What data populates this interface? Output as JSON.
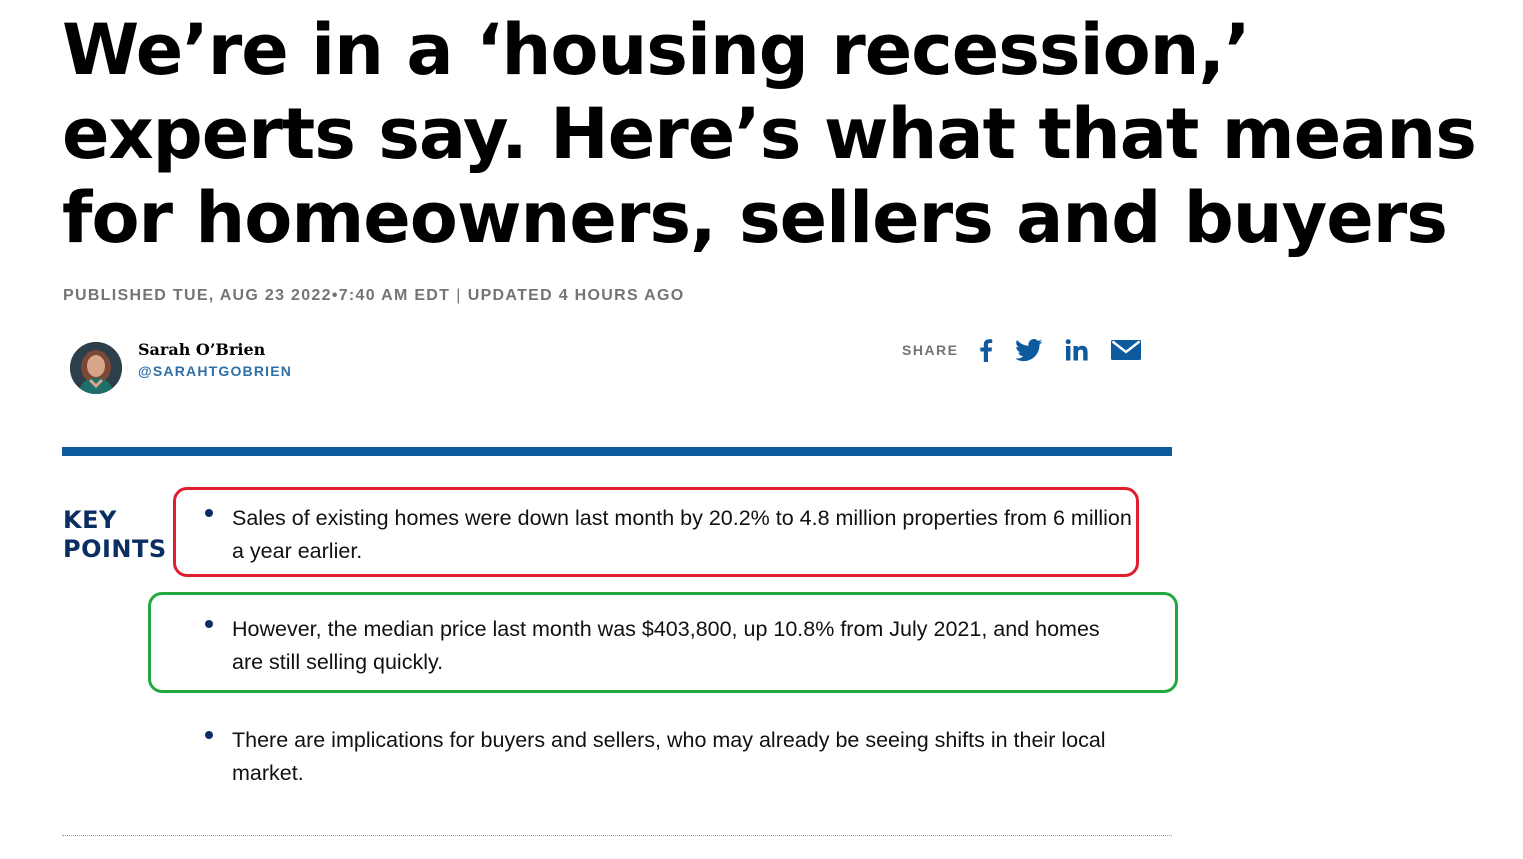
{
  "article": {
    "headline": "We’re in a ‘housing recession,’ experts say. Here’s what that means for homeowners, sellers and buyers",
    "published": "PUBLISHED TUE, AUG 23 2022•7:40 AM EDT",
    "separator": "|",
    "updated": "UPDATED 4 HOURS AGO"
  },
  "author": {
    "name": "Sarah O’Brien",
    "handle": "@SARAHTGOBRIEN",
    "avatar_icon": "author-photo"
  },
  "share": {
    "label": "SHARE",
    "buttons": [
      {
        "name": "facebook",
        "icon": "facebook-icon"
      },
      {
        "name": "twitter",
        "icon": "twitter-icon"
      },
      {
        "name": "linkedin",
        "icon": "linkedin-icon"
      },
      {
        "name": "email",
        "icon": "email-icon"
      }
    ],
    "icon_color": "#0d5a9e"
  },
  "key_points": {
    "title_line1": "KEY",
    "title_line2": "POINTS",
    "items": [
      {
        "text": "Sales of existing homes were down last month by 20.2% to 4.8 million properties from 6 million a year earlier.",
        "highlight": "red"
      },
      {
        "text": "However, the median price last month was $403,800, up 10.8% from July 2021, and homes are still selling quickly.",
        "highlight": "green"
      },
      {
        "text": "There are implications for buyers and sellers, who may already be seeing shifts in their local market.",
        "highlight": ""
      }
    ]
  },
  "colors": {
    "accent_blue": "#0d5a9e",
    "key_points_navy": "#0a2e62",
    "highlight_red": "#e01e2e",
    "highlight_green": "#23a83e",
    "meta_gray": "#747474"
  }
}
